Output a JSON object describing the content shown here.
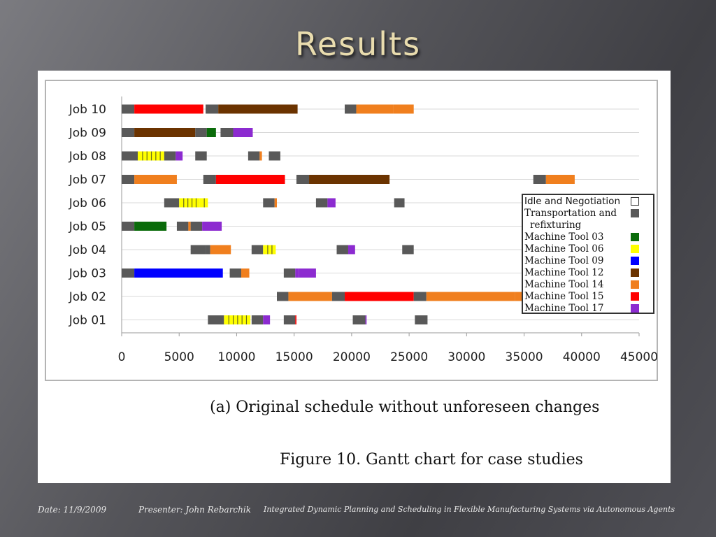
{
  "slide": {
    "title": "Results",
    "caption": "(a) Original schedule without unforeseen changes",
    "figure_caption": "Figure 10. Gantt chart for case studies"
  },
  "footer": {
    "date": "Date: 11/9/2009",
    "presenter": "Presenter: John Rebarchik",
    "topic": "Integrated Dynamic Planning and Scheduling in Flexible Manufacturing Systems via Autonomous Agents"
  },
  "chart_data": {
    "type": "gantt",
    "xlim": [
      0,
      45000
    ],
    "xticks": [
      0,
      5000,
      10000,
      15000,
      20000,
      25000,
      30000,
      35000,
      40000,
      45000
    ],
    "xtick_labels": [
      "0",
      "5000",
      "10000",
      "15000",
      "20000",
      "25000",
      "30000",
      "35000",
      "40000",
      "45000"
    ],
    "legend": [
      {
        "key": "idle",
        "label": "Idle and Negotiation",
        "color": "#ffffff"
      },
      {
        "key": "trans",
        "label": "Transportation and",
        "label2": "refixturing",
        "color": "#595959"
      },
      {
        "key": "m03",
        "label": "Machine Tool 03",
        "color": "#0a6b0a"
      },
      {
        "key": "m06",
        "label": "Machine Tool 06",
        "color": "#ffff00"
      },
      {
        "key": "m09",
        "label": "Machine Tool 09",
        "color": "#0000ff"
      },
      {
        "key": "m12",
        "label": "Machine Tool 12",
        "color": "#6b3300"
      },
      {
        "key": "m14",
        "label": "Machine Tool 14",
        "color": "#f07f1e"
      },
      {
        "key": "m15",
        "label": "Machine Tool 15",
        "color": "#ff0000"
      },
      {
        "key": "m17",
        "label": "Machine Tool 17",
        "color": "#8c2bd0"
      }
    ],
    "jobs": [
      {
        "label": "Job 10",
        "tasks": [
          [
            0,
            1100,
            "trans"
          ],
          [
            1100,
            7100,
            "m15"
          ],
          [
            7300,
            8400,
            "trans"
          ],
          [
            8400,
            15300,
            "m12"
          ],
          [
            19400,
            20400,
            "trans"
          ],
          [
            20400,
            23600,
            "m14"
          ],
          [
            23600,
            25400,
            "m14"
          ]
        ]
      },
      {
        "label": "Job 09",
        "tasks": [
          [
            0,
            1100,
            "trans"
          ],
          [
            1100,
            6400,
            "m12"
          ],
          [
            6400,
            7400,
            "trans"
          ],
          [
            7400,
            8200,
            "m03"
          ],
          [
            8600,
            9700,
            "trans"
          ],
          [
            9700,
            11400,
            "m17"
          ]
        ]
      },
      {
        "label": "Job 08",
        "tasks": [
          [
            0,
            1400,
            "trans"
          ],
          [
            1400,
            3700,
            "m06"
          ],
          [
            3700,
            4700,
            "trans"
          ],
          [
            4700,
            5300,
            "m17"
          ],
          [
            6400,
            7400,
            "trans"
          ],
          [
            11000,
            12000,
            "trans"
          ],
          [
            12000,
            12200,
            "m14"
          ],
          [
            12800,
            13800,
            "trans"
          ]
        ]
      },
      {
        "label": "Job 07",
        "tasks": [
          [
            0,
            1100,
            "trans"
          ],
          [
            1100,
            4800,
            "m14"
          ],
          [
            7100,
            8200,
            "trans"
          ],
          [
            8200,
            14200,
            "m15"
          ],
          [
            15200,
            16300,
            "trans"
          ],
          [
            16300,
            23300,
            "m12"
          ],
          [
            35800,
            36900,
            "trans"
          ],
          [
            36900,
            39400,
            "m14"
          ]
        ]
      },
      {
        "label": "Job 06",
        "tasks": [
          [
            3700,
            5000,
            "trans"
          ],
          [
            5000,
            6800,
            "m06"
          ],
          [
            6800,
            7500,
            "m06"
          ],
          [
            12300,
            13300,
            "trans"
          ],
          [
            13300,
            13500,
            "m14"
          ],
          [
            16900,
            17900,
            "trans"
          ],
          [
            17900,
            18600,
            "m17"
          ],
          [
            23700,
            24600,
            "trans"
          ]
        ]
      },
      {
        "label": "Job 05",
        "tasks": [
          [
            0,
            1100,
            "trans"
          ],
          [
            1100,
            3900,
            "m03"
          ],
          [
            4800,
            5800,
            "trans"
          ],
          [
            5800,
            6000,
            "m14"
          ],
          [
            6000,
            7000,
            "trans"
          ],
          [
            7000,
            8700,
            "m17"
          ]
        ]
      },
      {
        "label": "Job 04",
        "tasks": [
          [
            6000,
            7300,
            "trans"
          ],
          [
            7300,
            7700,
            "trans"
          ],
          [
            7700,
            9500,
            "m14"
          ],
          [
            11300,
            12300,
            "trans"
          ],
          [
            12300,
            13400,
            "m06"
          ],
          [
            18700,
            19700,
            "trans"
          ],
          [
            19700,
            20300,
            "m17"
          ],
          [
            24400,
            25400,
            "trans"
          ]
        ]
      },
      {
        "label": "Job 03",
        "tasks": [
          [
            0,
            1100,
            "trans"
          ],
          [
            1100,
            8800,
            "m09"
          ],
          [
            9400,
            10400,
            "trans"
          ],
          [
            10400,
            11100,
            "m14"
          ],
          [
            14100,
            15100,
            "trans"
          ],
          [
            15100,
            15400,
            "m17"
          ],
          [
            15400,
            16900,
            "m17"
          ]
        ]
      },
      {
        "label": "Job 02",
        "tasks": [
          [
            13500,
            14500,
            "trans"
          ],
          [
            14500,
            18300,
            "m14"
          ],
          [
            18300,
            19400,
            "trans"
          ],
          [
            19400,
            25400,
            "m15"
          ],
          [
            25400,
            26500,
            "trans"
          ],
          [
            26500,
            34200,
            "m14"
          ],
          [
            34200,
            35900,
            "m14"
          ]
        ]
      },
      {
        "label": "Job 01",
        "tasks": [
          [
            7500,
            8900,
            "trans"
          ],
          [
            8900,
            11200,
            "m06"
          ],
          [
            11300,
            12300,
            "trans"
          ],
          [
            12300,
            12900,
            "m17"
          ],
          [
            14100,
            15100,
            "trans"
          ],
          [
            15100,
            15200,
            "m15"
          ],
          [
            20100,
            21200,
            "trans"
          ],
          [
            21200,
            21300,
            "m17"
          ],
          [
            25500,
            26600,
            "trans"
          ]
        ]
      }
    ]
  }
}
